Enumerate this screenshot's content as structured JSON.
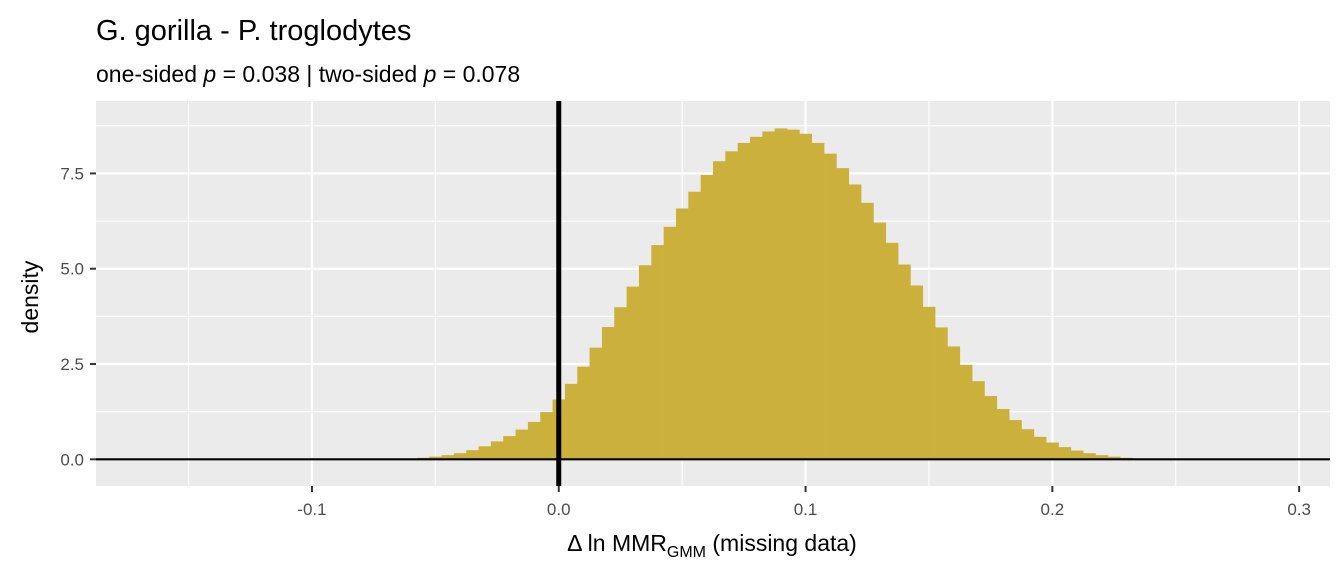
{
  "chart_data": {
    "type": "histogram",
    "title": "G. gorilla - P. troglodytes",
    "subtitle": {
      "one_sided_prefix": "one-sided ",
      "p_symbol": "p",
      "one_sided_value": " = 0.038 | two-sided ",
      "two_sided_value": " = 0.078"
    },
    "xlabel": {
      "prefix": "Δ ln MMR",
      "subscript": "GMM",
      "suffix": " (missing data)"
    },
    "ylabel": "density",
    "xlim": [
      -0.1875,
      0.3125
    ],
    "ylim": [
      -0.7,
      9.4
    ],
    "x_ticks": [
      -0.1,
      0.0,
      0.1,
      0.2,
      0.3
    ],
    "x_tick_labels": [
      "-0.1",
      "0.0",
      "0.1",
      "0.2",
      "0.3"
    ],
    "y_ticks": [
      0.0,
      2.5,
      5.0,
      7.5
    ],
    "y_tick_labels": [
      "0.0",
      "2.5",
      "5.0",
      "7.5"
    ],
    "vline_x": 0.0,
    "hline_y": 0.0,
    "fill_color": "#CBB03C",
    "panel_color": "#EBEBEB",
    "grid_color": "#FFFFFF",
    "grid": true,
    "bins": {
      "start": -0.0625,
      "width": 0.005,
      "values": [
        0.02,
        0.04,
        0.07,
        0.11,
        0.16,
        0.24,
        0.34,
        0.47,
        0.61,
        0.78,
        0.98,
        1.24,
        1.57,
        1.98,
        2.43,
        2.93,
        3.47,
        3.99,
        4.53,
        5.09,
        5.62,
        6.1,
        6.58,
        7.02,
        7.46,
        7.82,
        8.08,
        8.3,
        8.46,
        8.6,
        8.68,
        8.65,
        8.54,
        8.3,
        8.02,
        7.64,
        7.21,
        6.73,
        6.21,
        5.68,
        5.11,
        4.56,
        4.0,
        3.46,
        2.96,
        2.48,
        2.05,
        1.66,
        1.32,
        1.03,
        0.79,
        0.59,
        0.44,
        0.32,
        0.23,
        0.16,
        0.11,
        0.07,
        0.04,
        0.02
      ]
    }
  }
}
